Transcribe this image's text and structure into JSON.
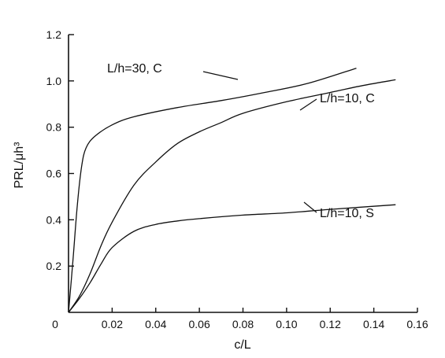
{
  "chart_data": {
    "type": "line",
    "xlabel": "c/L",
    "ylabel": "PRL/μh³",
    "xlim": [
      0,
      0.16
    ],
    "ylim": [
      0,
      1.2
    ],
    "x_ticks": [
      "0",
      "0.02",
      "0.04",
      "0.06",
      "0.08",
      "0.10",
      "0.12",
      "0.14",
      "0.16"
    ],
    "y_ticks": [
      "0.2",
      "0.4",
      "0.6",
      "0.8",
      "1.0",
      "1.2"
    ],
    "grid": false,
    "series": [
      {
        "name": "L/h=30, C",
        "points": [
          [
            0,
            0
          ],
          [
            0.002,
            0.22
          ],
          [
            0.004,
            0.46
          ],
          [
            0.006,
            0.63
          ],
          [
            0.008,
            0.71
          ],
          [
            0.012,
            0.76
          ],
          [
            0.02,
            0.81
          ],
          [
            0.03,
            0.845
          ],
          [
            0.05,
            0.885
          ],
          [
            0.07,
            0.915
          ],
          [
            0.09,
            0.95
          ],
          [
            0.11,
            0.99
          ],
          [
            0.132,
            1.055
          ]
        ]
      },
      {
        "name": "L/h=10, C",
        "points": [
          [
            0,
            0
          ],
          [
            0.005,
            0.07
          ],
          [
            0.01,
            0.17
          ],
          [
            0.015,
            0.29
          ],
          [
            0.02,
            0.39
          ],
          [
            0.03,
            0.55
          ],
          [
            0.04,
            0.65
          ],
          [
            0.05,
            0.73
          ],
          [
            0.06,
            0.78
          ],
          [
            0.07,
            0.82
          ],
          [
            0.08,
            0.86
          ],
          [
            0.1,
            0.91
          ],
          [
            0.12,
            0.95
          ],
          [
            0.135,
            0.98
          ],
          [
            0.15,
            1.005
          ]
        ]
      },
      {
        "name": "L/h=10, S",
        "points": [
          [
            0,
            0
          ],
          [
            0.005,
            0.06
          ],
          [
            0.01,
            0.13
          ],
          [
            0.015,
            0.21
          ],
          [
            0.02,
            0.28
          ],
          [
            0.03,
            0.35
          ],
          [
            0.04,
            0.38
          ],
          [
            0.05,
            0.395
          ],
          [
            0.06,
            0.405
          ],
          [
            0.08,
            0.42
          ],
          [
            0.1,
            0.43
          ],
          [
            0.12,
            0.445
          ],
          [
            0.15,
            0.465
          ]
        ]
      }
    ],
    "annotations": [
      "L/h=30, C",
      "L/h=10, C",
      "L/h=10, S"
    ]
  }
}
